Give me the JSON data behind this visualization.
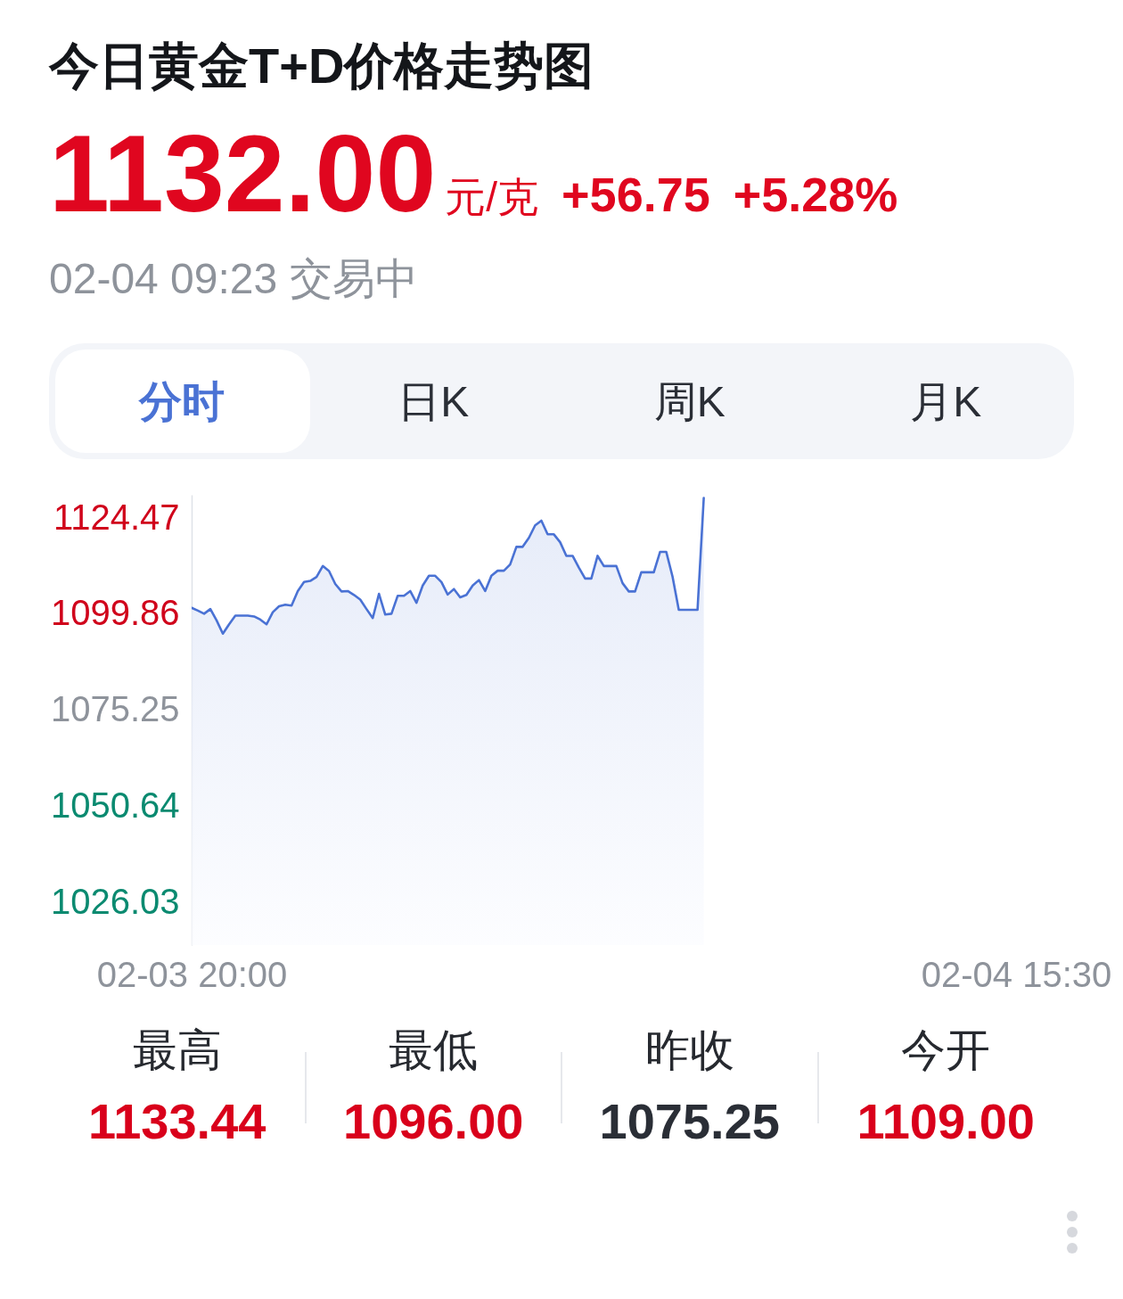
{
  "chart_data": {
    "type": "area",
    "title": "今日黄金T+D价格走势图",
    "annotations": [
      "1132.00",
      "元/克",
      "+56.75",
      "+5.28%",
      "02-04 09:23 交易中",
      "分时",
      "日K",
      "周K",
      "月K",
      "最高",
      "1133.44",
      "最低",
      "1096.00",
      "昨收",
      "1075.25",
      "今开",
      "1109.00"
    ],
    "categories": [
      "02-03 20:00",
      null,
      null,
      null,
      null,
      null,
      null,
      null,
      null,
      null,
      null,
      null,
      null,
      null,
      null,
      null,
      null,
      null,
      null,
      null,
      null,
      null,
      null,
      null,
      null,
      null,
      null,
      null,
      null,
      null,
      null,
      null,
      null,
      null,
      null,
      null,
      null,
      null,
      null,
      null,
      null,
      null,
      null,
      null,
      null,
      null,
      null,
      null,
      null,
      null,
      null,
      null,
      null,
      null,
      null,
      null,
      null,
      null,
      null,
      null,
      null,
      null,
      null,
      null,
      null,
      null,
      null,
      null,
      null,
      null,
      null,
      null,
      null,
      null,
      null,
      null,
      null,
      null,
      null,
      null,
      null,
      null,
      null,
      null,
      null,
      null,
      null,
      null,
      null,
      null,
      null,
      null,
      null,
      null,
      null,
      null,
      null,
      null,
      null,
      null,
      null,
      null,
      null,
      null,
      null,
      null,
      null,
      null,
      null,
      null,
      null,
      null,
      null,
      null,
      null,
      null,
      null,
      null,
      null,
      null,
      null,
      null,
      null,
      null,
      null,
      null,
      null,
      null,
      null,
      null,
      null,
      null,
      "02-04 15:30"
    ],
    "series": [
      {
        "color": "#4a72d4",
        "values": [
          1101.5,
          1100.8,
          1100.0,
          1101.2,
          1098.3,
          1094.9,
          1097.3,
          1099.5,
          1099.5,
          1099.5,
          1099.3,
          1098.5,
          1097.3,
          1100.4,
          1101.9,
          1102.3,
          1102.1,
          1105.8,
          1108.1,
          1108.4,
          1109.4,
          1112.2,
          1110.9,
          1107.6,
          1105.7,
          1105.8,
          1104.8,
          1103.6,
          1101.2,
          1098.9,
          1105.1,
          1099.8,
          1100.0,
          1104.6,
          1104.6,
          1105.8,
          1102.8,
          1107.2,
          1109.7,
          1109.7,
          1108.1,
          1104.9,
          1106.3,
          1104.2,
          1104.8,
          1107.2,
          1108.6,
          1105.8,
          1109.7,
          1111.0,
          1111.0,
          1112.6,
          1117.1,
          1117.1,
          1119.4,
          1122.6,
          1123.8,
          1120.3,
          1120.3,
          1118.3,
          1114.8,
          1114.8,
          1111.8,
          1109.0,
          1109.0,
          1114.8,
          1112.2,
          1112.2,
          1112.2,
          1107.8,
          1105.7,
          1105.7,
          1110.6,
          1110.6,
          1110.6,
          1115.8,
          1115.8,
          1109.5,
          1101.0,
          1101.0,
          1101.0,
          1101.0,
          1129.6,
          null,
          null,
          null,
          null,
          null,
          null,
          null,
          null,
          null,
          null,
          null,
          null,
          null,
          null,
          null,
          null,
          null,
          null,
          null,
          null,
          null,
          null,
          null,
          null,
          null,
          null,
          null,
          null,
          null,
          null,
          null,
          null,
          null,
          null,
          null,
          null,
          null,
          null,
          null,
          null,
          null,
          null,
          null,
          null,
          null,
          null,
          null,
          null,
          null,
          null
        ]
      }
    ],
    "ylim": [
      1015.3,
      1130.4
    ],
    "yticks": [
      1026.03,
      1050.64,
      1075.25,
      1099.86,
      1124.47
    ]
  }
}
